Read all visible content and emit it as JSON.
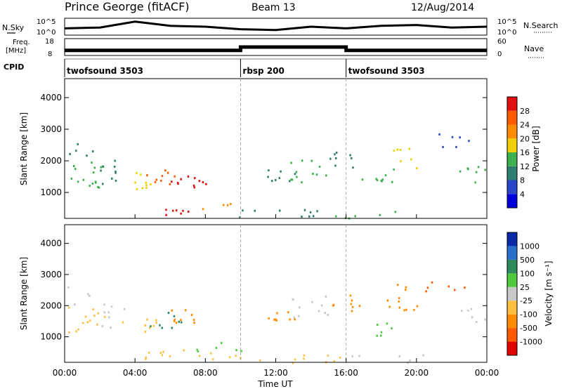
{
  "header": {
    "station": "Prince George (fitACF)",
    "beam": "Beam 13",
    "date": "12/Aug/2014"
  },
  "colors": {
    "power": [
      "#0000dd",
      "#2a46c8",
      "#2e7d6e",
      "#3cb050",
      "#f0d000",
      "#ff8c00",
      "#ff5a00",
      "#e01010"
    ],
    "velocity": [
      "#e00000",
      "#ff5a00",
      "#ff8c00",
      "#ffbf40",
      "#c8c8c8",
      "#50c840",
      "#2e8a5a",
      "#2a6ecc",
      "#0a2aa8"
    ]
  },
  "chart_data": [
    {
      "type": "line",
      "panel": "N.Sky / N.Search",
      "title": "",
      "ylabel_left": "N.Sky",
      "ylabel_right": "N.Search",
      "yticks_left": [
        "10^5",
        "10^0"
      ],
      "yticks_right": [
        "10^5",
        "10^0"
      ],
      "series": [
        {
          "name": "N.Sky",
          "x": [
            0,
            2,
            4,
            6,
            8,
            10,
            12,
            14,
            16,
            18,
            20,
            22,
            24
          ],
          "values": [
            40,
            45,
            80,
            55,
            50,
            35,
            30,
            50,
            40,
            55,
            60,
            45,
            50
          ]
        }
      ]
    },
    {
      "type": "line",
      "panel": "Freq / Nave",
      "ylabel_left_top": "Freq.",
      "ylabel_left_bottom": "[MHz]",
      "ylabel_right": "Nave",
      "yticks_left": [
        "18",
        "8"
      ],
      "yticks_right": [
        "60",
        "0"
      ],
      "series": [
        {
          "name": "Freq",
          "x": [
            0,
            10,
            10,
            16,
            16,
            24
          ],
          "values": [
            11,
            11,
            13,
            13,
            11,
            11
          ]
        }
      ]
    },
    {
      "type": "table",
      "panel": "CPID",
      "label": "CPID",
      "segments": [
        {
          "start": 0,
          "end": 10,
          "label": "twofsound 3503"
        },
        {
          "start": 10,
          "end": 16,
          "label": "rbsp 200"
        },
        {
          "start": 16,
          "end": 24,
          "label": "twofsound 3503"
        }
      ]
    },
    {
      "type": "heatmap",
      "panel": "power",
      "ylabel": "Slant Range [km]",
      "ylim": [
        180,
        4600
      ],
      "yticks": [
        "1000",
        "2000",
        "3000",
        "4000"
      ],
      "colorbar_label": "Power [dB]",
      "colorbar_ticks": [
        "4",
        "8",
        "12",
        "16",
        "20",
        "24",
        "28"
      ],
      "colorbar_range": [
        0,
        32
      ],
      "blobs": [
        {
          "t": 1.2,
          "r": 1500,
          "dt": 1.1,
          "dr": 480,
          "v": 12,
          "density": 0.55
        },
        {
          "t": 0.8,
          "r": 2350,
          "dt": 0.8,
          "dr": 280,
          "v": 8,
          "density": 0.4
        },
        {
          "t": 4.2,
          "r": 1400,
          "dt": 1.0,
          "dr": 280,
          "v": 16,
          "density": 0.6
        },
        {
          "t": 5.6,
          "r": 1550,
          "dt": 1.0,
          "dr": 260,
          "v": 24,
          "density": 0.65
        },
        {
          "t": 7.0,
          "r": 1300,
          "dt": 1.0,
          "dr": 260,
          "v": 28,
          "density": 0.75
        },
        {
          "t": 6.8,
          "r": 380,
          "dt": 1.3,
          "dr": 120,
          "v": 28,
          "density": 0.8
        },
        {
          "t": 8.8,
          "r": 550,
          "dt": 1.0,
          "dr": 120,
          "v": 22,
          "density": 0.6
        },
        {
          "t": 2.5,
          "r": 1700,
          "dt": 1.0,
          "dr": 400,
          "v": 8,
          "density": 0.4
        },
        {
          "t": 12.2,
          "r": 1500,
          "dt": 0.9,
          "dr": 300,
          "v": 8,
          "density": 0.5
        },
        {
          "t": 13.8,
          "r": 1700,
          "dt": 1.2,
          "dr": 350,
          "v": 12,
          "density": 0.5
        },
        {
          "t": 15.8,
          "r": 2100,
          "dt": 1.0,
          "dr": 300,
          "v": 8,
          "density": 0.45
        },
        {
          "t": 17.8,
          "r": 1500,
          "dt": 1.0,
          "dr": 300,
          "v": 12,
          "density": 0.55
        },
        {
          "t": 19.2,
          "r": 2100,
          "dt": 0.8,
          "dr": 320,
          "v": 16,
          "density": 0.5
        },
        {
          "t": 23.2,
          "r": 1600,
          "dt": 0.8,
          "dr": 300,
          "v": 12,
          "density": 0.5
        },
        {
          "t": 12.0,
          "r": 350,
          "dt": 3.5,
          "dr": 140,
          "v": 8,
          "density": 0.35
        },
        {
          "t": 18.0,
          "r": 320,
          "dt": 3.0,
          "dr": 120,
          "v": 12,
          "density": 0.3
        },
        {
          "t": 22.0,
          "r": 2700,
          "dt": 1.5,
          "dr": 300,
          "v": 4,
          "density": 0.25
        }
      ]
    },
    {
      "type": "heatmap",
      "panel": "velocity",
      "ylabel": "Slant Range [km]",
      "ylim": [
        180,
        4600
      ],
      "yticks": [
        "1000",
        "2000",
        "3000",
        "4000"
      ],
      "xlabel": "Time UT",
      "xticks": [
        "00:00",
        "04:00",
        "08:00",
        "12:00",
        "16:00",
        "20:00",
        "00:00"
      ],
      "xlim": [
        0,
        24
      ],
      "colorbar_label": "Velocity [m s⁻¹]",
      "colorbar_ticks": [
        "-1000",
        "-500",
        "-100",
        "-25",
        "25",
        "100",
        "500",
        "1000"
      ],
      "blobs": [
        {
          "t": 1.2,
          "r": 1500,
          "dt": 1.1,
          "dr": 480,
          "v": 3,
          "density": 0.45
        },
        {
          "t": 0.8,
          "r": 2350,
          "dt": 0.8,
          "dr": 280,
          "v": 4,
          "density": 0.35
        },
        {
          "t": 4.2,
          "r": 1400,
          "dt": 1.0,
          "dr": 280,
          "v": 3,
          "density": 0.5
        },
        {
          "t": 5.6,
          "r": 1550,
          "dt": 1.0,
          "dr": 260,
          "v": 6,
          "density": 0.55
        },
        {
          "t": 7.0,
          "r": 1700,
          "dt": 1.0,
          "dr": 260,
          "v": 2,
          "density": 0.6
        },
        {
          "t": 6.8,
          "r": 450,
          "dt": 2.3,
          "dr": 180,
          "v": 3,
          "density": 0.5
        },
        {
          "t": 8.8,
          "r": 700,
          "dt": 1.5,
          "dr": 150,
          "v": 5,
          "density": 0.5
        },
        {
          "t": 2.5,
          "r": 1700,
          "dt": 1.0,
          "dr": 400,
          "v": 4,
          "density": 0.35
        },
        {
          "t": 12.2,
          "r": 1600,
          "dt": 0.9,
          "dr": 300,
          "v": 2,
          "density": 0.5
        },
        {
          "t": 13.8,
          "r": 2000,
          "dt": 1.2,
          "dr": 350,
          "v": 4,
          "density": 0.45
        },
        {
          "t": 15.8,
          "r": 2100,
          "dt": 1.0,
          "dr": 300,
          "v": 2,
          "density": 0.45
        },
        {
          "t": 17.8,
          "r": 1300,
          "dt": 0.8,
          "dr": 250,
          "v": 5,
          "density": 0.55
        },
        {
          "t": 19.2,
          "r": 2300,
          "dt": 0.9,
          "dr": 420,
          "v": 2,
          "density": 0.55
        },
        {
          "t": 23.2,
          "r": 1700,
          "dt": 0.8,
          "dr": 300,
          "v": 4,
          "density": 0.45
        },
        {
          "t": 12.5,
          "r": 330,
          "dt": 4.0,
          "dr": 150,
          "v": 3,
          "density": 0.35
        },
        {
          "t": 18.0,
          "r": 320,
          "dt": 3.0,
          "dr": 120,
          "v": 4,
          "density": 0.3
        },
        {
          "t": 21.5,
          "r": 2700,
          "dt": 1.5,
          "dr": 300,
          "v": 1,
          "density": 0.25
        }
      ]
    }
  ]
}
